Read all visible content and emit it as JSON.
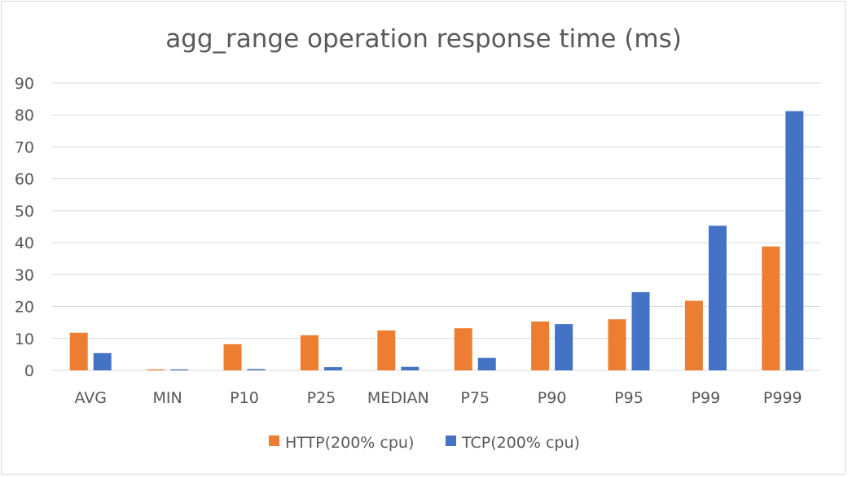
{
  "chart_data": {
    "type": "bar",
    "title": "agg_range operation response time (ms)",
    "xlabel": "",
    "ylabel": "",
    "categories": [
      "AVG",
      "MIN",
      "P10",
      "P25",
      "MEDIAN",
      "P75",
      "P90",
      "P95",
      "P99",
      "P999"
    ],
    "series": [
      {
        "name": "HTTP(200% cpu)",
        "color": "#ED7D31",
        "values": [
          11.8,
          0.3,
          8.2,
          11.0,
          12.5,
          13.2,
          15.3,
          16.0,
          21.8,
          38.8
        ]
      },
      {
        "name": "TCP(200% cpu)",
        "color": "#4472C4",
        "values": [
          5.4,
          0.3,
          0.4,
          1.0,
          1.1,
          3.9,
          14.5,
          24.5,
          45.3,
          81.2
        ]
      }
    ],
    "ylim": [
      0,
      90
    ],
    "yticks": [
      0,
      10,
      20,
      30,
      40,
      50,
      60,
      70,
      80,
      90
    ],
    "grid": true,
    "legend_position": "bottom"
  }
}
